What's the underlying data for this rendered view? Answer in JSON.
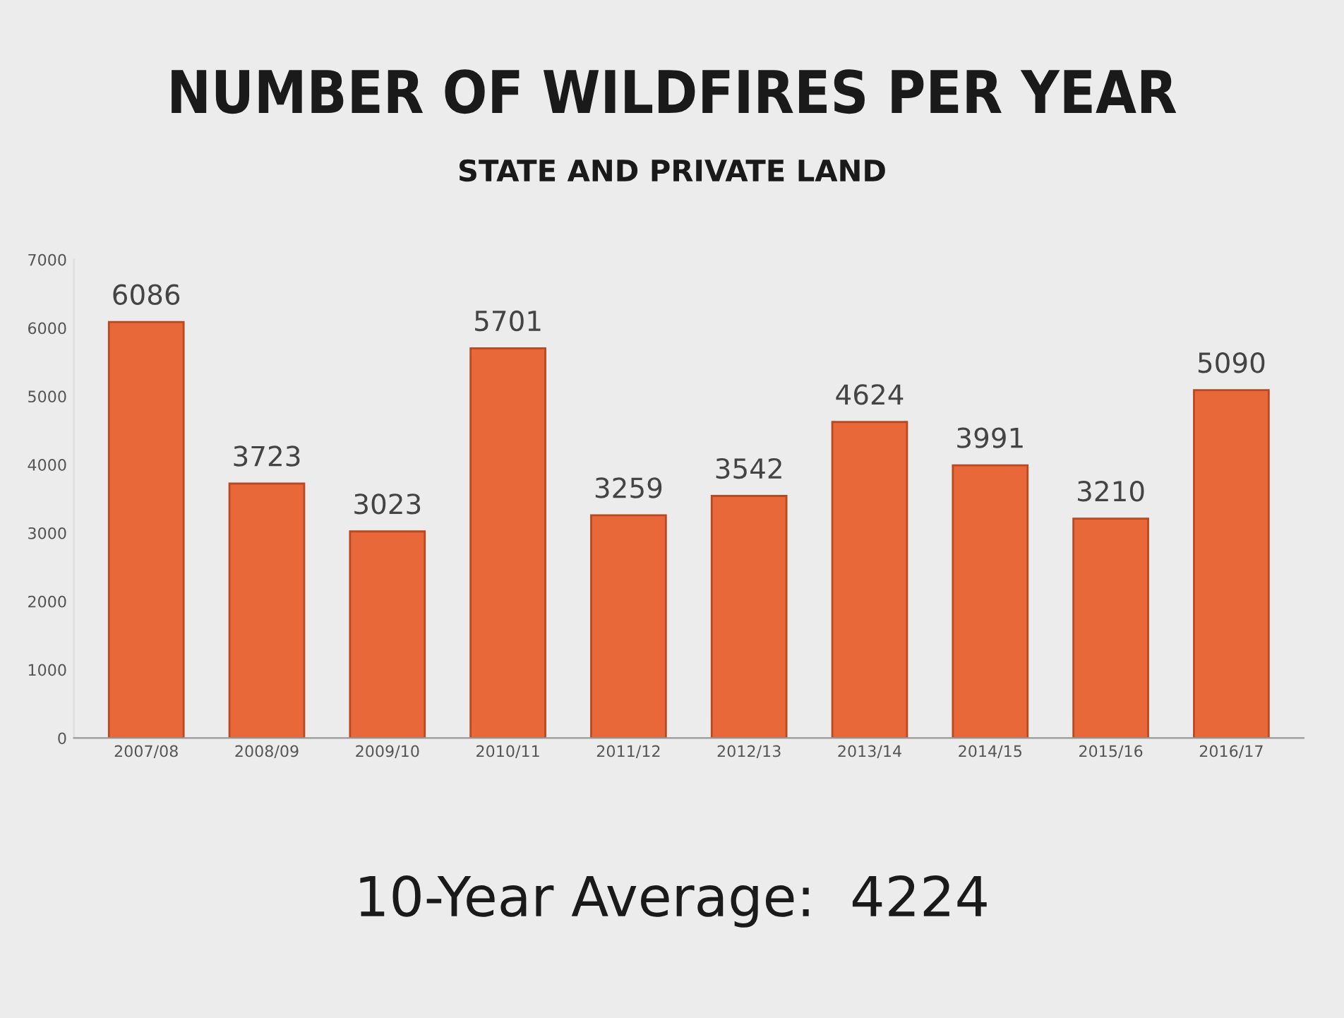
{
  "chart_data": {
    "type": "bar",
    "title": "NUMBER OF WILDFIRES PER YEAR",
    "subtitle": "STATE AND PRIVATE LAND",
    "categories": [
      "2007/08",
      "2008/09",
      "2009/10",
      "2010/11",
      "2011/12",
      "2012/13",
      "2013/14",
      "2014/15",
      "2015/16",
      "2016/17"
    ],
    "values": [
      6086,
      3723,
      3023,
      5701,
      3259,
      3542,
      4624,
      3991,
      3210,
      5090
    ],
    "color": "#e8683a",
    "data_labels": true,
    "ylim": [
      0,
      7000
    ],
    "yticks": [
      0,
      1000,
      2000,
      3000,
      4000,
      5000,
      6000,
      7000
    ],
    "grid": false,
    "annotations": [
      "10-Year Average:  4224"
    ]
  }
}
